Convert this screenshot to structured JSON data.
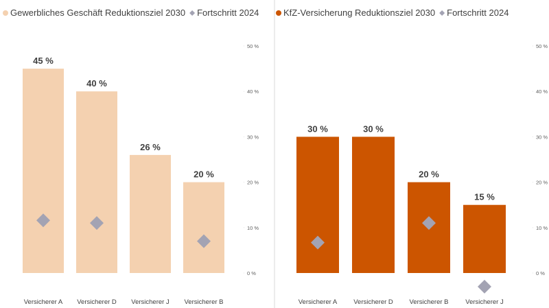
{
  "colors": {
    "panel_left_bar": "#f4d1b0",
    "panel_right_bar": "#cc5500",
    "marker": "#a3a3b3",
    "text": "#404040",
    "divider": "#d8d8d8"
  },
  "chart_data": [
    {
      "type": "bar",
      "title": "",
      "legend_position": "top-left",
      "categories": [
        "Versicherer A",
        "Versicherer D",
        "Versicherer J",
        "Versicherer B"
      ],
      "series": [
        {
          "name": "Gewerbliches Geschäft Reduktionsziel 2030",
          "kind": "bar",
          "values": [
            45,
            40,
            26,
            20
          ],
          "data_labels": [
            "45 %",
            "40 %",
            "26 %",
            "20 %"
          ]
        },
        {
          "name": "Fortschritt 2024",
          "kind": "diamond",
          "values": [
            11.6,
            11,
            null,
            7
          ]
        }
      ],
      "y_axis": {
        "position": "right",
        "ylim": [
          0,
          50
        ],
        "ticks": [
          0,
          10,
          20,
          30,
          40,
          50
        ],
        "tick_labels": [
          "0 %",
          "10 %",
          "20 %",
          "30 %",
          "40 %",
          "50 %"
        ]
      }
    },
    {
      "type": "bar",
      "title": "",
      "legend_position": "top-left",
      "categories": [
        "Versicherer A",
        "Versicherer D",
        "Versicherer B",
        "Versicherer J"
      ],
      "series": [
        {
          "name": "KfZ-Versicherung Reduktionsziel 2030",
          "kind": "bar",
          "values": [
            30,
            30,
            20,
            15
          ],
          "data_labels": [
            "30 %",
            "30 %",
            "20 %",
            "15 %"
          ]
        },
        {
          "name": "Fortschritt 2024",
          "kind": "diamond",
          "values": [
            6.7,
            null,
            11,
            -3
          ]
        }
      ],
      "y_axis": {
        "position": "right",
        "ylim": [
          0,
          50
        ],
        "ticks": [
          0,
          10,
          20,
          30,
          40,
          50
        ],
        "tick_labels": [
          "0 %",
          "10 %",
          "20 %",
          "30 %",
          "40 %",
          "50 %"
        ]
      }
    }
  ]
}
